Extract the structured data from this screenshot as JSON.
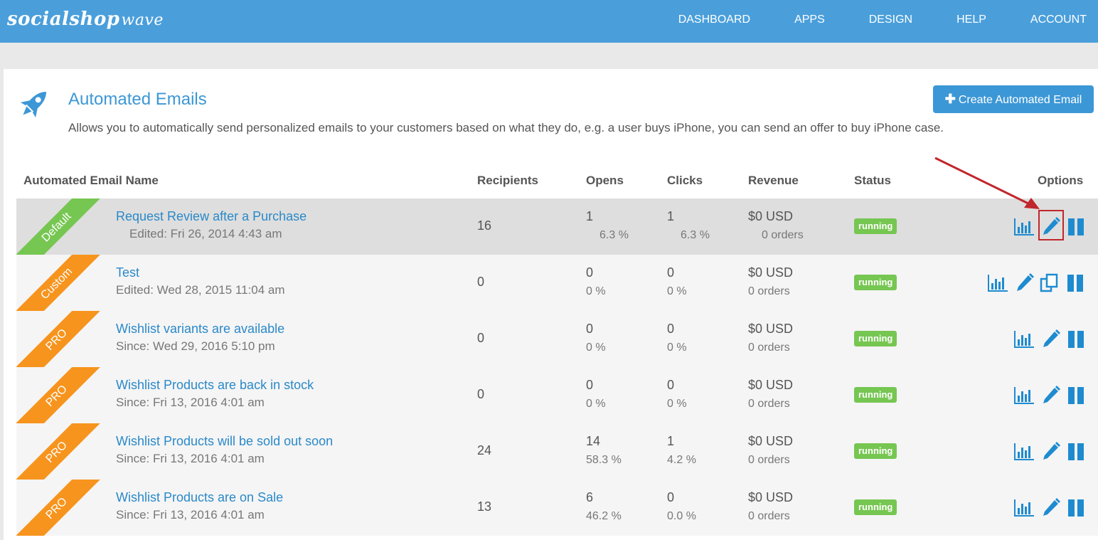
{
  "logo": {
    "main": "socialshop",
    "accent": "wave"
  },
  "nav": [
    "DASHBOARD",
    "APPS",
    "DESIGN",
    "HELP",
    "ACCOUNT"
  ],
  "page": {
    "title": "Automated Emails",
    "subtitle": "Allows you to automatically send personalized emails to your customers based on what they do, e.g. a user buys iPhone, you can send an offer to buy iPhone case.",
    "create_button": "Create Automated Email",
    "icon": "rocket-icon"
  },
  "table": {
    "headers": {
      "name": "Automated Email Name",
      "recipients": "Recipients",
      "opens": "Opens",
      "clicks": "Clicks",
      "revenue": "Revenue",
      "status": "Status",
      "options": "Options"
    },
    "rows": [
      {
        "ribbon": "Default",
        "ribbon_color": "#76c652",
        "name": "Request Review after a Purchase",
        "meta": "Edited: Fri 26, 2014 4:43 am",
        "recipients": "16",
        "opens": "1",
        "opens_pct": "6.3 %",
        "clicks": "1",
        "clicks_pct": "6.3 %",
        "revenue": "$0 USD",
        "orders": "0 orders",
        "status": "running",
        "options": [
          "chart-icon",
          "edit-icon",
          "pause-icon"
        ],
        "highlighted_option": "edit-icon"
      },
      {
        "ribbon": "Custom",
        "ribbon_color": "#f7941d",
        "name": "Test",
        "meta": "Edited: Wed 28, 2015 11:04 am",
        "recipients": "0",
        "opens": "0",
        "opens_pct": "0 %",
        "clicks": "0",
        "clicks_pct": "0 %",
        "revenue": "$0 USD",
        "orders": "0 orders",
        "status": "running",
        "options": [
          "chart-icon",
          "edit-icon",
          "copy-icon",
          "pause-icon"
        ]
      },
      {
        "ribbon": "PRO",
        "ribbon_color": "#f7941d",
        "name": "Wishlist variants are available",
        "meta": "Since: Wed 29, 2016 5:10 pm",
        "recipients": "0",
        "opens": "0",
        "opens_pct": "0 %",
        "clicks": "0",
        "clicks_pct": "0 %",
        "revenue": "$0 USD",
        "orders": "0 orders",
        "status": "running",
        "options": [
          "chart-icon",
          "edit-icon",
          "pause-icon"
        ]
      },
      {
        "ribbon": "PRO",
        "ribbon_color": "#f7941d",
        "name": "Wishlist Products are back in stock",
        "meta": "Since: Fri 13, 2016 4:01 am",
        "recipients": "0",
        "opens": "0",
        "opens_pct": "0 %",
        "clicks": "0",
        "clicks_pct": "0 %",
        "revenue": "$0 USD",
        "orders": "0 orders",
        "status": "running",
        "options": [
          "chart-icon",
          "edit-icon",
          "pause-icon"
        ]
      },
      {
        "ribbon": "PRO",
        "ribbon_color": "#f7941d",
        "name": "Wishlist Products will be sold out soon",
        "meta": "Since: Fri 13, 2016 4:01 am",
        "recipients": "24",
        "opens": "14",
        "opens_pct": "58.3 %",
        "clicks": "1",
        "clicks_pct": "4.2 %",
        "revenue": "$0 USD",
        "orders": "0 orders",
        "status": "running",
        "options": [
          "chart-icon",
          "edit-icon",
          "pause-icon"
        ]
      },
      {
        "ribbon": "PRO",
        "ribbon_color": "#f7941d",
        "name": "Wishlist Products are on Sale",
        "meta": "Since: Fri 13, 2016 4:01 am",
        "recipients": "13",
        "opens": "6",
        "opens_pct": "46.2 %",
        "clicks": "0",
        "clicks_pct": "0.0 %",
        "revenue": "$0 USD",
        "orders": "0 orders",
        "status": "running",
        "options": [
          "chart-icon",
          "edit-icon",
          "pause-icon"
        ]
      }
    ]
  },
  "colors": {
    "topbar": "#4a9fdb",
    "link": "#2a89c9",
    "running": "#76c652",
    "pro": "#f7941d",
    "annotation": "#c0272d"
  }
}
